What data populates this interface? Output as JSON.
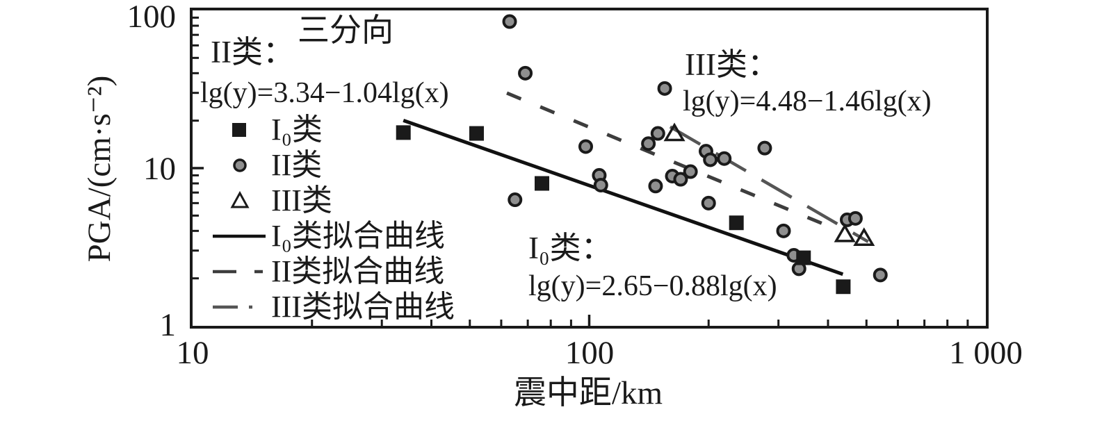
{
  "title": "三分向",
  "y_axis": {
    "label": "PGA/(cm·s⁻²)",
    "tick_labels": [
      "100",
      "10",
      "1"
    ]
  },
  "x_axis": {
    "label": "震中距/km",
    "tick_labels": [
      "10",
      "100",
      "1 000"
    ]
  },
  "annotations": {
    "class2_label": "II类：",
    "class2_equation": "lg(y)=3.34−1.04lg(x)",
    "class3_label": "III类：",
    "class3_equation": "lg(y)=4.48−1.46lg(x)",
    "class1_label": "I₀类：",
    "class1_equation": "lg(y)=2.65−0.88lg(x)"
  },
  "legend": {
    "items": [
      {
        "type": "square",
        "label": "I₀类"
      },
      {
        "type": "circle",
        "label": "II类"
      },
      {
        "type": "triangle",
        "label": "III类"
      },
      {
        "type": "solid",
        "label": "I₀类拟合曲线"
      },
      {
        "type": "dashed",
        "label": "II类拟合曲线"
      },
      {
        "type": "dashdot",
        "label": "III类拟合曲线"
      }
    ]
  },
  "colors": {
    "ink": "#1a1a1a",
    "circle_fill": "#8f8f8f",
    "solid_line": "#111111",
    "dashed_line": "#3d3d3d",
    "dashdot_line": "#555555"
  },
  "chart_data": {
    "type": "scatter",
    "title": "三分向",
    "xlabel": "震中距/km",
    "ylabel": "PGA/(cm·s⁻²)",
    "xscale": "log",
    "yscale": "log",
    "xlim": [
      10,
      1000
    ],
    "ylim": [
      1,
      100
    ],
    "grid": false,
    "legend_position": "upper-left-inside",
    "series": [
      {
        "name": "I₀类",
        "marker": "square",
        "points": [
          [
            34,
            16.8
          ],
          [
            52,
            16.6
          ],
          [
            76,
            8.0
          ],
          [
            235,
            4.5
          ],
          [
            347,
            2.7
          ],
          [
            437,
            1.77
          ]
        ]
      },
      {
        "name": "II类",
        "marker": "circle",
        "points": [
          [
            63,
            85
          ],
          [
            69,
            40
          ],
          [
            155,
            32
          ],
          [
            98,
            13.7
          ],
          [
            141,
            14.3
          ],
          [
            149,
            16.6
          ],
          [
            197,
            12.8
          ],
          [
            202,
            11.3
          ],
          [
            219,
            11.5
          ],
          [
            277,
            13.4
          ],
          [
            162,
            8.9
          ],
          [
            170,
            8.5
          ],
          [
            180,
            9.5
          ],
          [
            147,
            7.7
          ],
          [
            106,
            9.0
          ],
          [
            107,
            7.8
          ],
          [
            65,
            6.3
          ],
          [
            200,
            6.0
          ],
          [
            309,
            4.0
          ],
          [
            447,
            4.7
          ],
          [
            469,
            4.8
          ],
          [
            328,
            2.8
          ],
          [
            338,
            2.3
          ],
          [
            542,
            2.1
          ]
        ]
      },
      {
        "name": "III类",
        "marker": "triangle",
        "points": [
          [
            164,
            16.6
          ],
          [
            441,
            3.8
          ],
          [
            493,
            3.6
          ]
        ]
      }
    ],
    "fit_lines": [
      {
        "name": "I₀类拟合曲线",
        "style": "solid",
        "equation": "lg(y)=2.65−0.88lg(x)",
        "intercept": 2.65,
        "slope": -0.88,
        "x_range": [
          34,
          436
        ]
      },
      {
        "name": "II类拟合曲线",
        "style": "dashed",
        "equation": "lg(y)=3.34−1.04lg(x)",
        "intercept": 3.34,
        "slope": -1.04,
        "x_range": [
          62,
          390
        ]
      },
      {
        "name": "III类拟合曲线",
        "style": "dashdot",
        "equation": "lg(y)=4.48−1.46lg(x)",
        "intercept": 4.48,
        "slope": -1.46,
        "x_range": [
          160,
          505
        ]
      }
    ]
  }
}
